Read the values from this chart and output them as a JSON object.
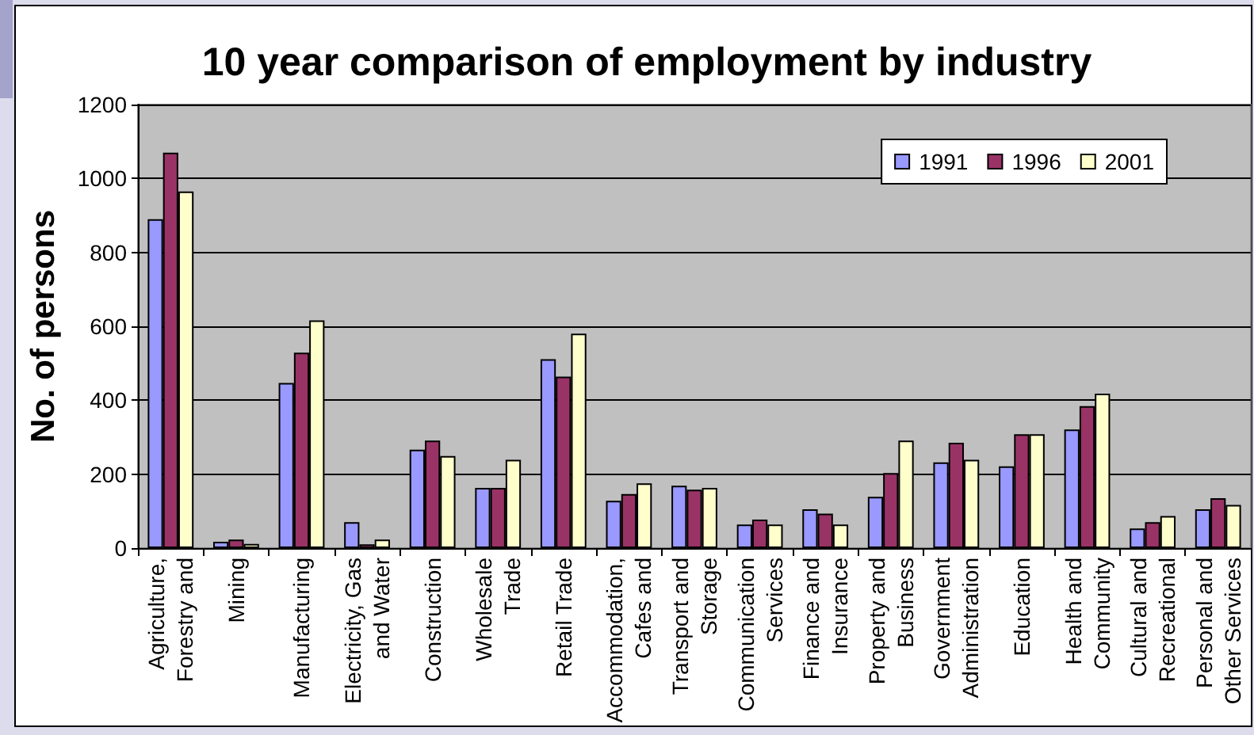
{
  "chart_data": {
    "type": "bar",
    "title": "10 year comparison of employment by industry",
    "ylabel": "No. of persons",
    "categories": [
      "Agriculture,\nForestry and",
      "Mining",
      "Manufacturing",
      "Electricity, Gas\nand Water",
      "Construction",
      "Wholesale\nTrade",
      "Retail Trade",
      "Accommodation,\nCafes and",
      "Transport and\nStorage",
      "Communication\nServices",
      "Finance and\nInsurance",
      "Property and\nBusiness",
      "Government\nAdministration",
      "Education",
      "Health and\nCommunity",
      "Cultural and\nRecreational",
      "Personal and\nOther Services"
    ],
    "series": [
      {
        "name": "1991",
        "color": "#9999ff",
        "values": [
          890,
          17,
          447,
          70,
          266,
          163,
          511,
          128,
          169,
          64,
          105,
          139,
          232,
          221,
          321,
          53,
          105
        ]
      },
      {
        "name": "1996",
        "color": "#993366",
        "values": [
          1070,
          23,
          529,
          10,
          291,
          163,
          464,
          146,
          158,
          77,
          93,
          203,
          285,
          308,
          384,
          70,
          135
        ]
      },
      {
        "name": "2001",
        "color": "#ffffcc",
        "values": [
          965,
          11,
          616,
          23,
          249,
          239,
          580,
          175,
          163,
          64,
          64,
          291,
          239,
          308,
          418,
          87,
          117
        ]
      }
    ],
    "ylim": [
      0,
      1200
    ],
    "yticks": [
      0,
      200,
      400,
      600,
      800,
      1000,
      1200
    ],
    "grid": "y",
    "legend": "top right"
  }
}
